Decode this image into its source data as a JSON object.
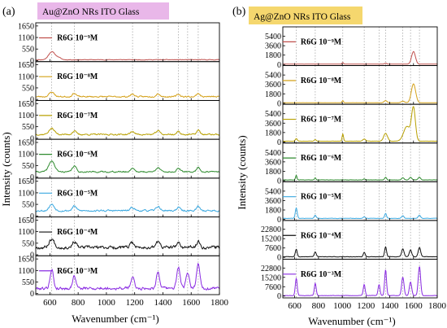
{
  "chart_data": [
    {
      "type": "line",
      "panel_tag": "(a)",
      "title": "Au@ZnO NRs ITO Glass",
      "title_bg": "#e9b7e9",
      "xlabel": "Wavenumber (cm⁻¹)",
      "ylabel": "Intensity (counts)",
      "xlim": [
        500,
        1800
      ],
      "xticks": [
        600,
        800,
        1000,
        1200,
        1400,
        1600,
        1800
      ],
      "ref_lines": [
        613,
        773,
        1185,
        1365,
        1510,
        1575,
        1650
      ],
      "ylim": [
        -50,
        1800
      ],
      "yticks": [
        0,
        550,
        1100,
        1650
      ],
      "series": [
        {
          "name": "R6G 10⁻⁹M",
          "color": "#c0504d",
          "noise": 25,
          "base": 40,
          "peaks": [
            [
              613,
              380,
              22
            ],
            [
              660,
              100,
              18
            ]
          ],
          "seed": 11
        },
        {
          "name": "R6G 10⁻⁸M",
          "color": "#d4a017",
          "noise": 55,
          "base": 130,
          "peaks": [
            [
              613,
              220,
              18
            ],
            [
              773,
              160,
              14
            ],
            [
              1185,
              120,
              14
            ],
            [
              1365,
              140,
              14
            ],
            [
              1510,
              120,
              12
            ],
            [
              1650,
              160,
              12
            ]
          ],
          "seed": 23
        },
        {
          "name": "R6G 10⁻⁷M",
          "color": "#b8a000",
          "noise": 60,
          "base": 180,
          "peaks": [
            [
              613,
              280,
              20
            ],
            [
              773,
              160,
              14
            ],
            [
              1185,
              140,
              14
            ],
            [
              1365,
              180,
              14
            ],
            [
              1510,
              140,
              12
            ],
            [
              1650,
              200,
              12
            ]
          ],
          "seed": 37
        },
        {
          "name": "R6G 10⁻⁶M",
          "color": "#2e8b2e",
          "noise": 55,
          "base": 250,
          "peaks": [
            [
              613,
              520,
              20
            ],
            [
              773,
              280,
              14
            ],
            [
              1185,
              180,
              14
            ],
            [
              1365,
              220,
              14
            ],
            [
              1510,
              180,
              12
            ],
            [
              1650,
              220,
              12
            ]
          ],
          "seed": 41
        },
        {
          "name": "R6G 10⁻⁵M",
          "color": "#3aa8e0",
          "noise": 70,
          "base": 250,
          "peaks": [
            [
              613,
              300,
              18
            ],
            [
              773,
              220,
              14
            ],
            [
              1185,
              150,
              14
            ],
            [
              1365,
              200,
              14
            ],
            [
              1510,
              160,
              12
            ],
            [
              1650,
              200,
              12
            ]
          ],
          "seed": 53
        },
        {
          "name": "R6G 10⁻⁴M",
          "color": "#111111",
          "noise": 130,
          "base": 350,
          "peaks": [
            [
              613,
              400,
              18
            ],
            [
              773,
              280,
              14
            ],
            [
              1185,
              220,
              14
            ],
            [
              1365,
              280,
              14
            ],
            [
              1510,
              220,
              12
            ],
            [
              1650,
              280,
              12
            ]
          ],
          "seed": 67
        },
        {
          "name": "R6G 10⁻³M",
          "color": "#8a2be2",
          "noise": 120,
          "base": 250,
          "peaks": [
            [
              613,
              900,
              12
            ],
            [
              773,
              600,
              12
            ],
            [
              1185,
              520,
              12
            ],
            [
              1365,
              780,
              12
            ],
            [
              1510,
              1000,
              12
            ],
            [
              1575,
              700,
              12
            ],
            [
              1650,
              1200,
              12
            ]
          ],
          "seed": 79
        }
      ]
    },
    {
      "type": "line",
      "panel_tag": "(b)",
      "title": "Ag@ZnO NRs ITO Glass",
      "title_bg": "#f5d76e",
      "xlabel": "Wavenumber (cm⁻¹)",
      "ylabel": "Intensity (counts)",
      "xlim": [
        500,
        1800
      ],
      "xticks": [
        600,
        800,
        1000,
        1200,
        1400,
        1600,
        1800
      ],
      "ref_lines": [
        613,
        773,
        1005,
        1185,
        1310,
        1365,
        1510,
        1575,
        1650
      ],
      "panels": [
        {
          "series": {
            "name": "R6G 10⁻⁹M",
            "color": "#c0504d",
            "noise": 20,
            "base": 80,
            "peaks": [
              [
                1005,
                300,
                6
              ],
              [
                1365,
                150,
                10
              ],
              [
                1600,
                2400,
                16
              ]
            ],
            "seed": 101
          },
          "ylim": [
            -200,
            7200
          ],
          "yticks": [
            0,
            1800,
            3600,
            5400
          ]
        },
        {
          "series": {
            "name": "R6G 10⁻⁸M",
            "color": "#d4a017",
            "noise": 25,
            "base": 100,
            "peaks": [
              [
                1005,
                400,
                6
              ],
              [
                1365,
                400,
                12
              ],
              [
                1510,
                300,
                14
              ],
              [
                1600,
                3600,
                18
              ]
            ],
            "seed": 113
          },
          "ylim": [
            -200,
            7200
          ],
          "yticks": [
            0,
            1800,
            3600,
            5400
          ]
        },
        {
          "series": {
            "name": "R6G 10⁻⁷M",
            "color": "#b8a000",
            "noise": 30,
            "base": 150,
            "peaks": [
              [
                613,
                500,
                8
              ],
              [
                773,
                300,
                8
              ],
              [
                1005,
                1400,
                6
              ],
              [
                1185,
                400,
                12
              ],
              [
                1365,
                1500,
                16
              ],
              [
                1545,
                2800,
                28
              ],
              [
                1600,
                6200,
                16
              ]
            ],
            "seed": 127
          },
          "ylim": [
            -200,
            7200
          ],
          "yticks": [
            0,
            1800,
            3600,
            5400
          ]
        },
        {
          "series": {
            "name": "R6G 10⁻⁶M",
            "color": "#2e8b2e",
            "noise": 40,
            "base": 150,
            "peaks": [
              [
                613,
                900,
                6
              ],
              [
                773,
                400,
                6
              ],
              [
                1185,
                200,
                8
              ],
              [
                1365,
                500,
                8
              ],
              [
                1510,
                400,
                10
              ],
              [
                1575,
                500,
                10
              ],
              [
                1650,
                500,
                10
              ]
            ],
            "seed": 131
          },
          "ylim": [
            -200,
            7200
          ],
          "yticks": [
            0,
            1800,
            3600,
            5400
          ]
        },
        {
          "series": {
            "name": "R6G 10⁻⁵M",
            "color": "#3aa8e0",
            "noise": 60,
            "base": 200,
            "peaks": [
              [
                613,
                2000,
                8
              ],
              [
                773,
                600,
                8
              ],
              [
                1185,
                300,
                8
              ],
              [
                1365,
                900,
                8
              ],
              [
                1510,
                500,
                10
              ],
              [
                1650,
                600,
                10
              ]
            ],
            "seed": 149
          },
          "ylim": [
            -200,
            7200
          ],
          "yticks": [
            0,
            1800,
            3600,
            5400
          ]
        },
        {
          "series": {
            "name": "R6G 10⁻⁴M",
            "color": "#111111",
            "noise": 300,
            "base": 500,
            "peaks": [
              [
                613,
                6000,
                8
              ],
              [
                773,
                4000,
                8
              ],
              [
                1185,
                3500,
                8
              ],
              [
                1365,
                8000,
                8
              ],
              [
                1510,
                6500,
                10
              ],
              [
                1575,
                5500,
                10
              ],
              [
                1650,
                7500,
                10
              ]
            ],
            "seed": 163
          },
          "ylim": [
            -1500,
            30000
          ],
          "yticks": [
            0,
            7600,
            15200,
            22800
          ]
        },
        {
          "series": {
            "name": "R6G 10⁻³M",
            "color": "#8a2be2",
            "noise": 250,
            "base": 400,
            "peaks": [
              [
                613,
                14000,
                8
              ],
              [
                773,
                10000,
                8
              ],
              [
                1185,
                9000,
                8
              ],
              [
                1310,
                9000,
                8
              ],
              [
                1365,
                21000,
                8
              ],
              [
                1510,
                15000,
                10
              ],
              [
                1575,
                11000,
                10
              ],
              [
                1650,
                23500,
                10
              ]
            ],
            "seed": 179
          },
          "ylim": [
            -1500,
            30000
          ],
          "yticks": [
            0,
            7600,
            15200,
            22800
          ]
        }
      ]
    }
  ]
}
